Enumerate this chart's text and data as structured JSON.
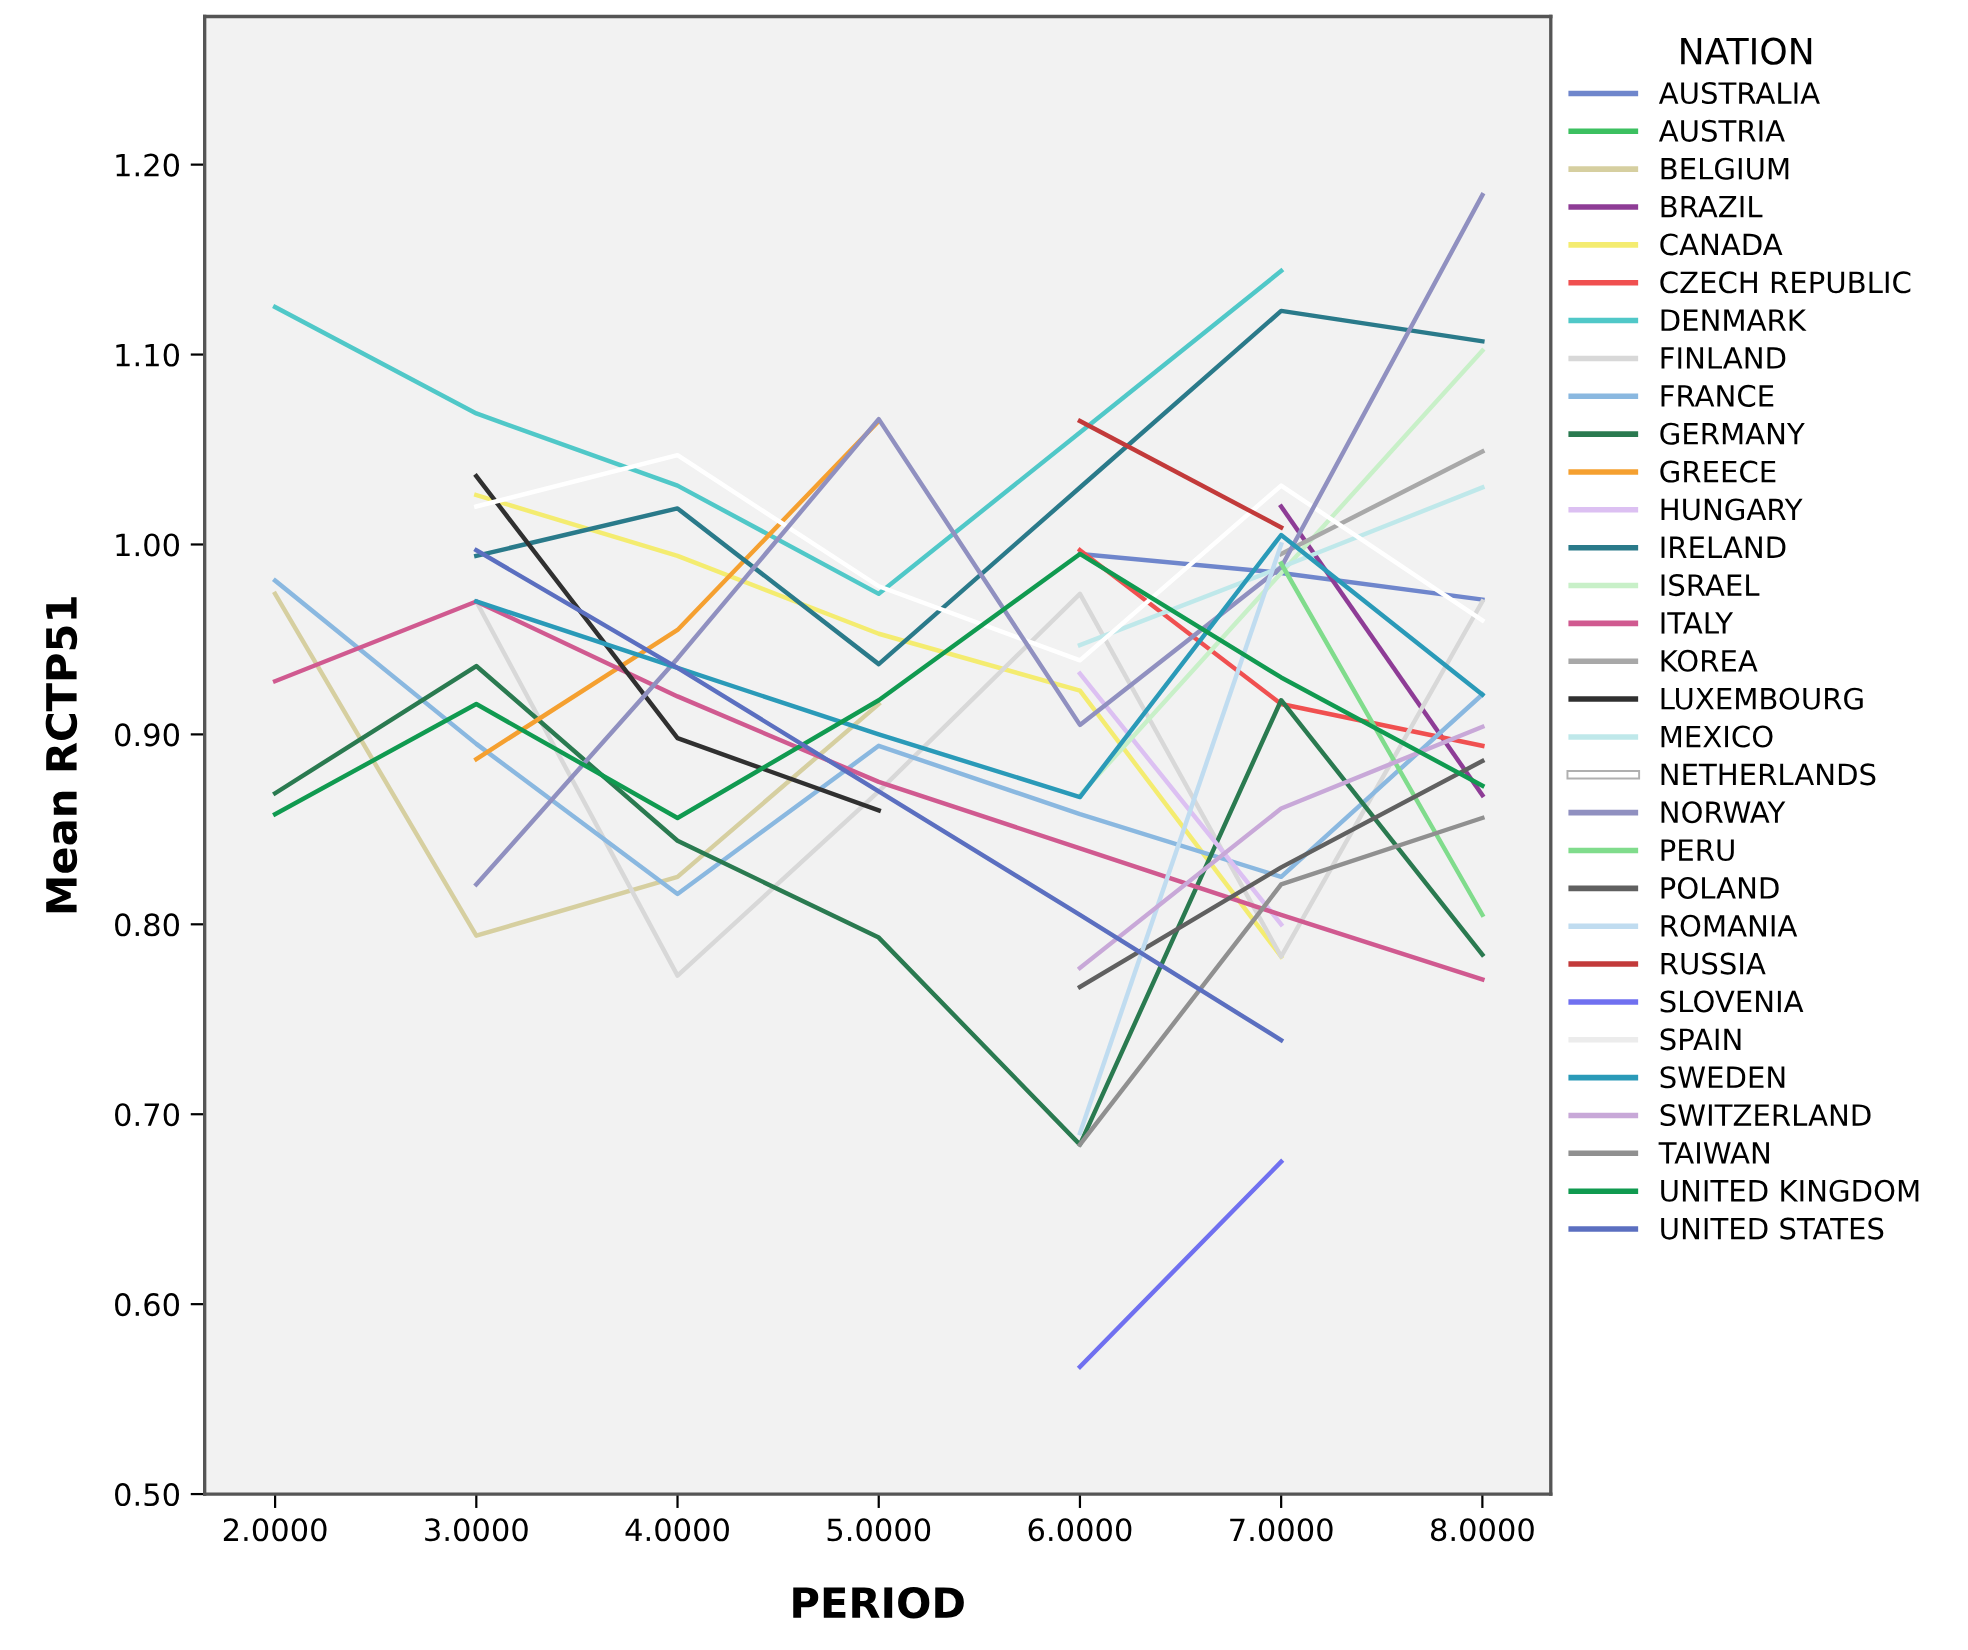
{
  "chart_data": {
    "type": "line",
    "xlabel": "PERIOD",
    "ylabel": "Mean RCTP51",
    "legend_title": "NATION",
    "legend": "right",
    "grid": false,
    "x": [
      2,
      3,
      4,
      5,
      6,
      7,
      8
    ],
    "xlim": [
      1.65,
      8.34
    ],
    "xticks": [
      {
        "value": 2,
        "label": "2.0000"
      },
      {
        "value": 3,
        "label": "3.0000"
      },
      {
        "value": 4,
        "label": "4.0000"
      },
      {
        "value": 5,
        "label": "5.0000"
      },
      {
        "value": 6,
        "label": "6.0000"
      },
      {
        "value": 7,
        "label": "7.0000"
      },
      {
        "value": 8,
        "label": "8.0000"
      }
    ],
    "ylim": [
      0.5,
      1.278
    ],
    "yticks": [
      {
        "value": 0.5,
        "label": "0.50"
      },
      {
        "value": 0.6,
        "label": "0.60"
      },
      {
        "value": 0.7,
        "label": "0.70"
      },
      {
        "value": 0.8,
        "label": "0.80"
      },
      {
        "value": 0.9,
        "label": "0.90"
      },
      {
        "value": 1.0,
        "label": "1.00"
      },
      {
        "value": 1.1,
        "label": "1.10"
      },
      {
        "value": 1.2,
        "label": "1.20"
      }
    ],
    "series": [
      {
        "name": "AUSTRALIA",
        "color": "#6f86cc",
        "values": [
          null,
          null,
          null,
          null,
          0.995,
          0.985,
          0.971
        ]
      },
      {
        "name": "AUSTRIA",
        "color": "#3cc060",
        "values": [
          null,
          null,
          null,
          null,
          null,
          null,
          null
        ]
      },
      {
        "name": "BELGIUM",
        "color": "#d6cfa0",
        "values": [
          0.974,
          0.794,
          0.825,
          0.916,
          null,
          null,
          null
        ]
      },
      {
        "name": "BRAZIL",
        "color": "#8e3c96",
        "values": [
          null,
          null,
          null,
          null,
          null,
          1.02,
          0.868
        ]
      },
      {
        "name": "CANADA",
        "color": "#f4ec70",
        "values": [
          null,
          1.026,
          0.994,
          0.953,
          0.923,
          0.783,
          null
        ]
      },
      {
        "name": "CZECH REPUBLIC",
        "color": "#f05050",
        "values": [
          null,
          null,
          null,
          null,
          0.997,
          0.916,
          0.894
        ]
      },
      {
        "name": "DENMARK",
        "color": "#50c8c8",
        "values": [
          1.125,
          1.069,
          1.031,
          0.974,
          1.059,
          1.144,
          null
        ]
      },
      {
        "name": "FINLAND",
        "color": "#d8d8d8",
        "values": [
          null,
          0.97,
          0.773,
          0.87,
          0.974,
          0.783,
          0.97
        ]
      },
      {
        "name": "FRANCE",
        "color": "#8ab8e0",
        "values": [
          0.981,
          0.895,
          0.816,
          0.894,
          0.858,
          0.825,
          0.921
        ]
      },
      {
        "name": "GERMANY",
        "color": "#2a7a50",
        "values": [
          0.869,
          0.936,
          0.844,
          0.793,
          0.684,
          0.918,
          0.784
        ]
      },
      {
        "name": "GREECE",
        "color": "#f5a030",
        "values": [
          null,
          0.887,
          0.955,
          1.065,
          null,
          null,
          null
        ]
      },
      {
        "name": "HUNGARY",
        "color": "#dcc0f2",
        "values": [
          null,
          null,
          null,
          null,
          0.932,
          0.8,
          null
        ]
      },
      {
        "name": "IRELAND",
        "color": "#2a7a8a",
        "values": [
          null,
          0.994,
          1.019,
          0.937,
          1.03,
          1.123,
          1.107
        ]
      },
      {
        "name": "ISRAEL",
        "color": "#c8f0c8",
        "values": [
          null,
          null,
          null,
          null,
          0.868,
          0.985,
          1.102
        ]
      },
      {
        "name": "ITALY",
        "color": "#d05a90",
        "values": [
          0.928,
          0.97,
          0.92,
          0.875,
          0.84,
          0.805,
          0.771
        ]
      },
      {
        "name": "KOREA",
        "color": "#a8a8a8",
        "values": [
          null,
          null,
          null,
          null,
          null,
          0.995,
          1.049
        ]
      },
      {
        "name": "LUXEMBOURG",
        "color": "#303030",
        "values": [
          null,
          1.036,
          0.898,
          0.86,
          null,
          null,
          null
        ]
      },
      {
        "name": "MEXICO",
        "color": "#bfe8ea",
        "values": [
          null,
          null,
          null,
          null,
          0.947,
          0.988,
          1.03
        ]
      },
      {
        "name": "NETHERLANDS",
        "color": "#ffffff",
        "values": [
          null,
          1.02,
          1.047,
          0.978,
          0.939,
          1.031,
          0.96
        ]
      },
      {
        "name": "NORWAY",
        "color": "#9090c0",
        "values": [
          null,
          0.821,
          0.94,
          1.066,
          0.905,
          0.988,
          1.184
        ]
      },
      {
        "name": "PERU",
        "color": "#80dc8c",
        "values": [
          null,
          null,
          null,
          null,
          null,
          0.99,
          0.805
        ]
      },
      {
        "name": "POLAND",
        "color": "#606060",
        "values": [
          null,
          null,
          null,
          null,
          0.767,
          0.83,
          0.886
        ]
      },
      {
        "name": "ROMANIA",
        "color": "#c0dcf0",
        "values": [
          null,
          null,
          null,
          null,
          0.69,
          1.0,
          null
        ]
      },
      {
        "name": "RUSSIA",
        "color": "#c23a3a",
        "values": [
          null,
          null,
          null,
          null,
          1.065,
          1.009,
          null
        ]
      },
      {
        "name": "SLOVENIA",
        "color": "#7070f0",
        "values": [
          null,
          null,
          null,
          null,
          0.567,
          0.675,
          null
        ]
      },
      {
        "name": "SPAIN",
        "color": "#ececec",
        "values": [
          null,
          null,
          null,
          null,
          null,
          null,
          null
        ]
      },
      {
        "name": "SWEDEN",
        "color": "#2a9ab8",
        "values": [
          null,
          0.97,
          0.935,
          0.9,
          0.867,
          1.005,
          0.921
        ]
      },
      {
        "name": "SWITZERLAND",
        "color": "#c8a8d8",
        "values": [
          null,
          null,
          null,
          null,
          0.777,
          0.861,
          0.904
        ]
      },
      {
        "name": "TAIWAN",
        "color": "#909090",
        "values": [
          null,
          null,
          null,
          null,
          0.684,
          0.821,
          0.856
        ]
      },
      {
        "name": "UNITED KINGDOM",
        "color": "#109a50",
        "values": [
          0.858,
          0.916,
          0.856,
          0.918,
          0.995,
          0.93,
          0.873
        ]
      },
      {
        "name": "UNITED STATES",
        "color": "#5b6fc0",
        "values": [
          null,
          0.997,
          0.935,
          0.87,
          0.805,
          0.739,
          null
        ]
      }
    ]
  }
}
